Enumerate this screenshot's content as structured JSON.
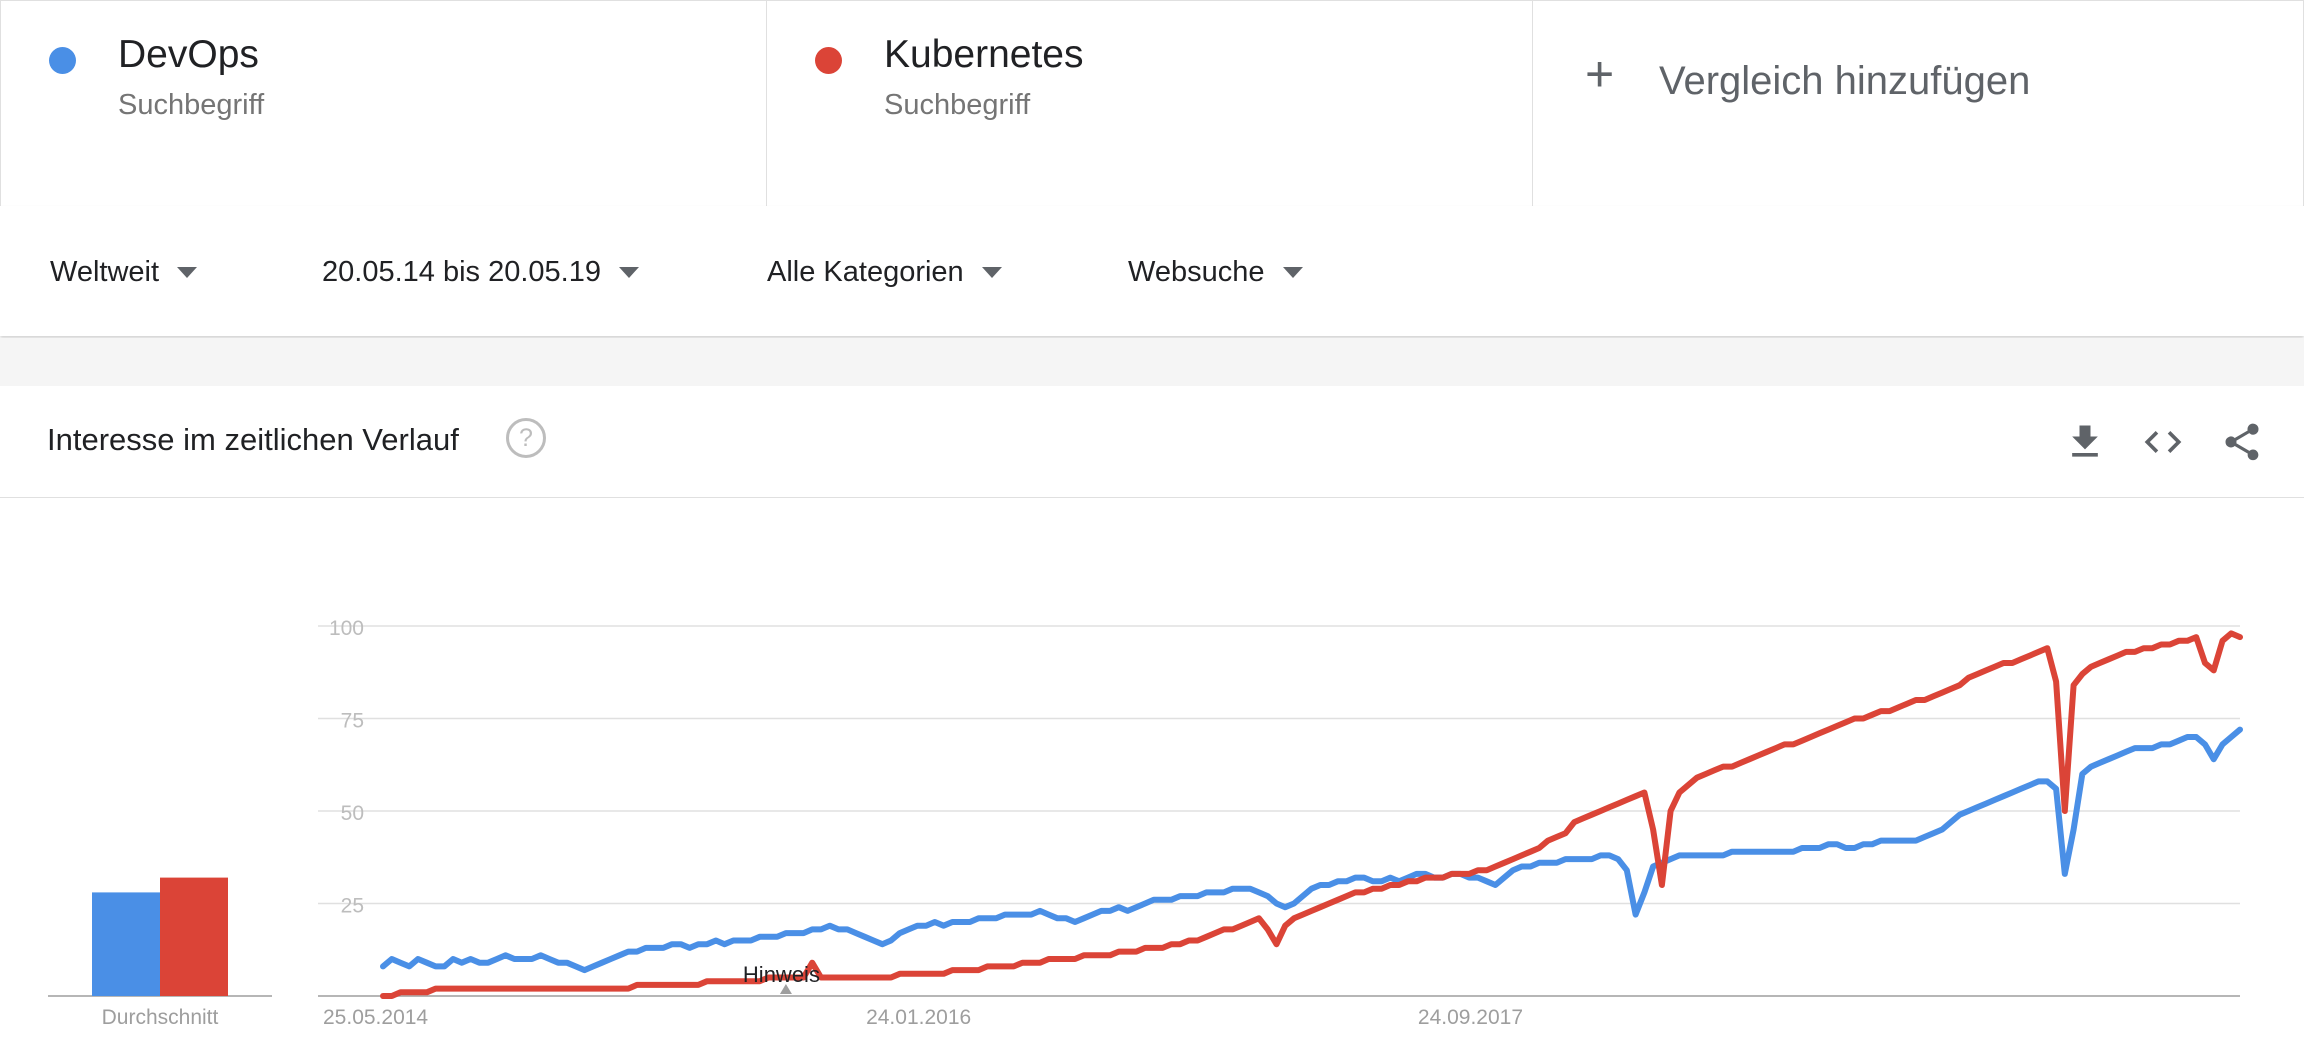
{
  "terms": [
    {
      "name": "DevOps",
      "type": "Suchbegriff",
      "color": "#4a8fe6"
    },
    {
      "name": "Kubernetes",
      "type": "Suchbegriff",
      "color": "#db4437"
    }
  ],
  "add_compare": {
    "icon": "plus-icon",
    "label": "Vergleich hinzufügen"
  },
  "filters": {
    "region": "Weltweit",
    "timerange": "20.05.14 bis 20.05.19",
    "category": "Alle Kategorien",
    "search_type": "Websuche"
  },
  "card": {
    "title": "Interesse im zeitlichen Verlauf",
    "help_icon": "question-circle-icon",
    "tools": [
      "download-icon",
      "embed-code-icon",
      "share-icon"
    ]
  },
  "chart_data": {
    "type": "line",
    "ylim": [
      0,
      100
    ],
    "yticks": [
      25,
      50,
      75,
      100
    ],
    "grid": true,
    "x_labels": [
      "25.05.2014",
      "24.01.2016",
      "24.09.2017"
    ],
    "average_label": "Durchschnitt",
    "annotation": "Hinweis",
    "averages": [
      {
        "name": "DevOps",
        "value": 28
      },
      {
        "name": "Kubernetes",
        "value": 32
      }
    ],
    "series": [
      {
        "name": "DevOps",
        "color": "#4a8fe6",
        "values": [
          8,
          10,
          9,
          8,
          10,
          9,
          8,
          8,
          10,
          9,
          10,
          9,
          9,
          10,
          11,
          10,
          10,
          10,
          11,
          10,
          9,
          9,
          8,
          7,
          8,
          9,
          10,
          11,
          12,
          12,
          13,
          13,
          13,
          14,
          14,
          13,
          14,
          14,
          15,
          14,
          15,
          15,
          15,
          16,
          16,
          16,
          17,
          17,
          17,
          18,
          18,
          19,
          18,
          18,
          17,
          16,
          15,
          14,
          15,
          17,
          18,
          19,
          19,
          20,
          19,
          20,
          20,
          20,
          21,
          21,
          21,
          22,
          22,
          22,
          22,
          23,
          22,
          21,
          21,
          20,
          21,
          22,
          23,
          23,
          24,
          23,
          24,
          25,
          26,
          26,
          26,
          27,
          27,
          27,
          28,
          28,
          28,
          29,
          29,
          29,
          28,
          27,
          25,
          24,
          25,
          27,
          29,
          30,
          30,
          31,
          31,
          32,
          32,
          31,
          31,
          32,
          31,
          32,
          33,
          33,
          32,
          32,
          33,
          33,
          32,
          32,
          31,
          30,
          32,
          34,
          35,
          35,
          36,
          36,
          36,
          37,
          37,
          37,
          37,
          38,
          38,
          37,
          34,
          22,
          28,
          35,
          36,
          37,
          38,
          38,
          38,
          38,
          38,
          38,
          39,
          39,
          39,
          39,
          39,
          39,
          39,
          39,
          40,
          40,
          40,
          41,
          41,
          40,
          40,
          41,
          41,
          42,
          42,
          42,
          42,
          42,
          43,
          44,
          45,
          47,
          49,
          50,
          51,
          52,
          53,
          54,
          55,
          56,
          57,
          58,
          58,
          56,
          33,
          45,
          60,
          62,
          63,
          64,
          65,
          66,
          67,
          67,
          67,
          68,
          68,
          69,
          70,
          70,
          68,
          64,
          68,
          70,
          72
        ]
      },
      {
        "name": "Kubernetes",
        "color": "#db4437",
        "values": [
          0,
          0,
          1,
          1,
          1,
          1,
          2,
          2,
          2,
          2,
          2,
          2,
          2,
          2,
          2,
          2,
          2,
          2,
          2,
          2,
          2,
          2,
          2,
          2,
          2,
          2,
          2,
          2,
          2,
          3,
          3,
          3,
          3,
          3,
          3,
          3,
          3,
          4,
          4,
          4,
          4,
          4,
          4,
          4,
          5,
          5,
          5,
          5,
          5,
          9,
          5,
          5,
          5,
          5,
          5,
          5,
          5,
          5,
          5,
          6,
          6,
          6,
          6,
          6,
          6,
          7,
          7,
          7,
          7,
          8,
          8,
          8,
          8,
          9,
          9,
          9,
          10,
          10,
          10,
          10,
          11,
          11,
          11,
          11,
          12,
          12,
          12,
          13,
          13,
          13,
          14,
          14,
          15,
          15,
          16,
          17,
          18,
          18,
          19,
          20,
          21,
          18,
          14,
          19,
          21,
          22,
          23,
          24,
          25,
          26,
          27,
          28,
          28,
          29,
          29,
          30,
          30,
          31,
          31,
          32,
          32,
          32,
          33,
          33,
          33,
          34,
          34,
          35,
          36,
          37,
          38,
          39,
          40,
          42,
          43,
          44,
          47,
          48,
          49,
          50,
          51,
          52,
          53,
          54,
          55,
          45,
          30,
          50,
          55,
          57,
          59,
          60,
          61,
          62,
          62,
          63,
          64,
          65,
          66,
          67,
          68,
          68,
          69,
          70,
          71,
          72,
          73,
          74,
          75,
          75,
          76,
          77,
          77,
          78,
          79,
          80,
          80,
          81,
          82,
          83,
          84,
          86,
          87,
          88,
          89,
          90,
          90,
          91,
          92,
          93,
          94,
          85,
          50,
          84,
          87,
          89,
          90,
          91,
          92,
          93,
          93,
          94,
          94,
          95,
          95,
          96,
          96,
          97,
          90,
          88,
          96,
          98,
          97
        ]
      }
    ]
  }
}
